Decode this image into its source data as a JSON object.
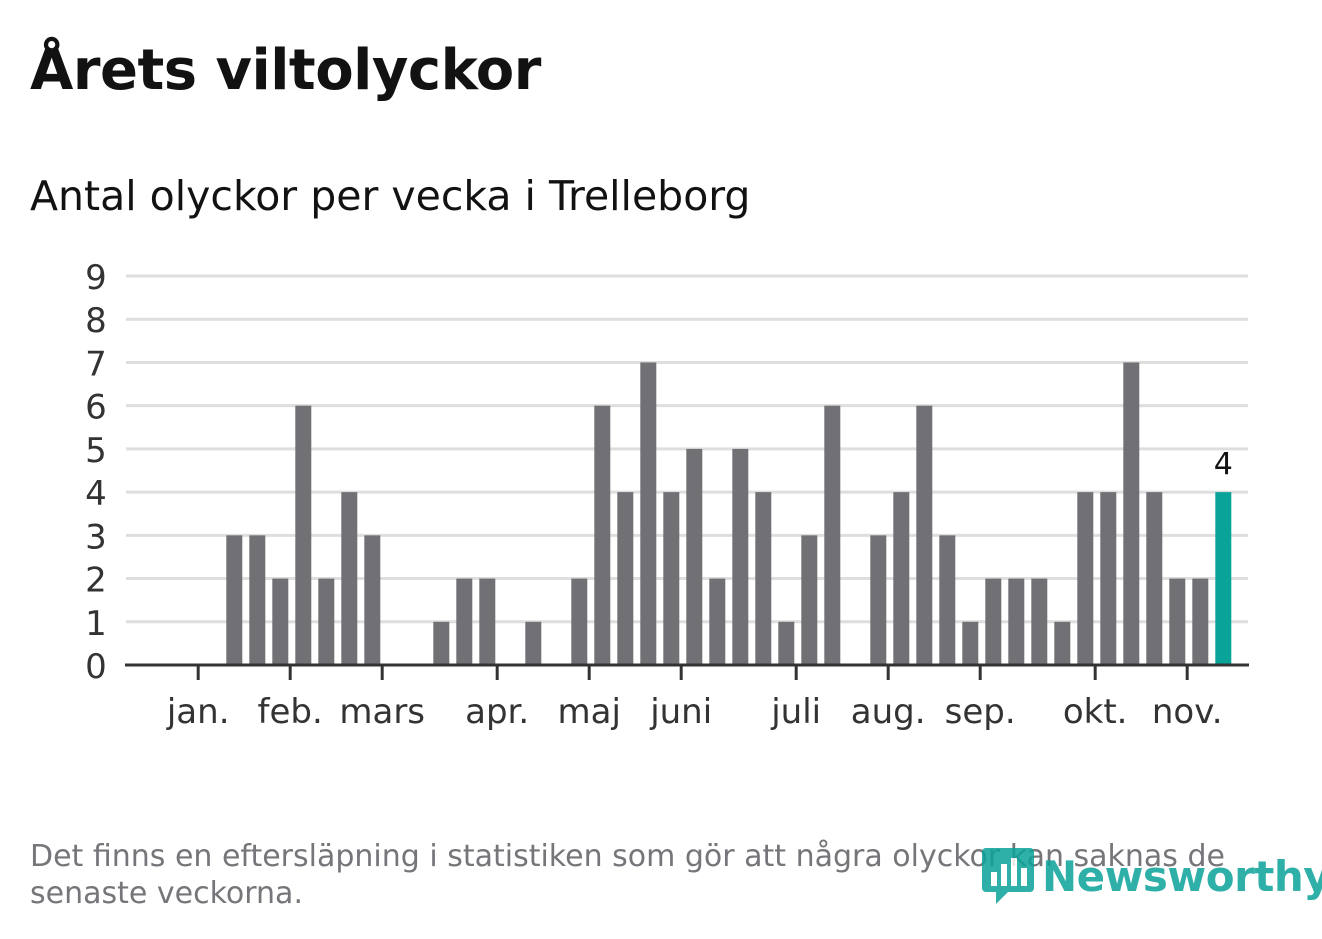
{
  "title": "Årets viltolyckor",
  "subtitle": "Antal olyckor per vecka i Trelleborg",
  "footnote": "Det finns en eftersläpning i statistiken som gör att några olyckor kan saknas de senaste veckorna.",
  "logo": {
    "text": "Newsworthy",
    "icon": "newsworthy-chat-bars-icon"
  },
  "colors": {
    "bar": "#717075",
    "highlight": "#0aa39a",
    "grid": "#dedede",
    "axis": "#333333",
    "text": "#121212",
    "muted": "#76757a"
  },
  "chart_data": {
    "type": "bar",
    "title": "Årets viltolyckor",
    "subtitle": "Antal olyckor per vecka i Trelleborg",
    "xlabel": "",
    "ylabel": "",
    "ylim": [
      0,
      9
    ],
    "yticks": [
      0,
      1,
      2,
      3,
      4,
      5,
      6,
      7,
      8,
      9
    ],
    "grid": true,
    "weeks": [
      1,
      2,
      3,
      4,
      5,
      6,
      7,
      8,
      9,
      10,
      11,
      12,
      13,
      14,
      15,
      16,
      17,
      18,
      19,
      20,
      21,
      22,
      23,
      24,
      25,
      26,
      27,
      28,
      29,
      30,
      31,
      32,
      33,
      34,
      35,
      36,
      37,
      38,
      39,
      40,
      41,
      42,
      43,
      44,
      45,
      46
    ],
    "values": [
      0,
      0,
      3,
      3,
      2,
      6,
      2,
      4,
      3,
      0,
      0,
      1,
      2,
      2,
      0,
      1,
      0,
      2,
      6,
      4,
      7,
      4,
      5,
      2,
      5,
      4,
      1,
      3,
      6,
      0,
      3,
      4,
      6,
      3,
      1,
      2,
      2,
      2,
      1,
      4,
      4,
      7,
      4,
      2,
      2,
      4
    ],
    "highlight_index": 45,
    "highlight_label": "4",
    "month_ticks": [
      {
        "label": "jan.",
        "week": 1.43
      },
      {
        "label": "feb.",
        "week": 5.43
      },
      {
        "label": "mars",
        "week": 9.43
      },
      {
        "label": "apr.",
        "week": 14.43
      },
      {
        "label": "maj",
        "week": 18.43
      },
      {
        "label": "juni",
        "week": 22.43
      },
      {
        "label": "juli",
        "week": 27.43
      },
      {
        "label": "aug.",
        "week": 31.43
      },
      {
        "label": "sep.",
        "week": 35.43
      },
      {
        "label": "okt.",
        "week": 40.43
      },
      {
        "label": "nov.",
        "week": 44.43
      }
    ]
  }
}
